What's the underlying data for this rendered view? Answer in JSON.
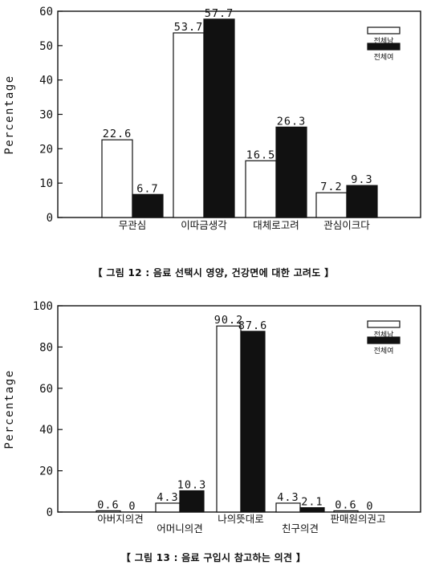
{
  "charts": [
    {
      "caption": "【 그림 12 : 음료 선택시 영양, 건강면에 대한 고려도 】",
      "ylabel": "Percentage",
      "legend": [
        "전체남",
        "전체여"
      ]
    },
    {
      "caption": "【 그림 13 : 음료 구입시 참고하는 의견 】",
      "ylabel": "Percentage",
      "legend": [
        "전체남",
        "전체여"
      ]
    }
  ],
  "chart_data": [
    {
      "type": "bar",
      "title": "",
      "xlabel": "",
      "ylabel": "Percentage",
      "ylim": [
        0,
        60
      ],
      "yticks": [
        0,
        10,
        20,
        30,
        40,
        50,
        60
      ],
      "categories": [
        "무관심",
        "이따금생각",
        "대체로고려",
        "관심이크다"
      ],
      "category_lines": [
        [
          "무관심"
        ],
        [
          "이따금생각"
        ],
        [
          "대체로고려"
        ],
        [
          "관심이크다"
        ]
      ],
      "series": [
        {
          "name": "전체남",
          "color": "#ffffff",
          "values": [
            22.6,
            53.7,
            16.5,
            7.2
          ],
          "labels": [
            "22.6",
            "53.7",
            "16.5",
            "7.2"
          ]
        },
        {
          "name": "전체여",
          "color": "#111111",
          "values": [
            6.7,
            57.7,
            26.3,
            9.3
          ],
          "labels": [
            "6.7",
            "57.7",
            "26.3",
            "9.3"
          ]
        }
      ],
      "legend_position": "top-right"
    },
    {
      "type": "bar",
      "title": "",
      "xlabel": "",
      "ylabel": "Percentage",
      "ylim": [
        0,
        100
      ],
      "yticks": [
        0,
        20,
        40,
        60,
        80,
        100
      ],
      "categories": [
        "아버지의견",
        "어머니의견",
        "나의뜻대로",
        "친구의견",
        "판매원의권고"
      ],
      "category_lines": [
        [
          "아버지의견"
        ],
        [
          "",
          "어머니의견"
        ],
        [
          "나의뜻대로"
        ],
        [
          "",
          "친구의견"
        ],
        [
          "판매원의권고"
        ]
      ],
      "series": [
        {
          "name": "전체남",
          "color": "#ffffff",
          "values": [
            0.6,
            4.3,
            90.2,
            4.3,
            0.6
          ],
          "labels": [
            "0.6",
            "4.3",
            "90.2",
            "4.3",
            "0.6"
          ]
        },
        {
          "name": "전체여",
          "color": "#111111",
          "values": [
            0,
            10.3,
            87.6,
            2.1,
            0
          ],
          "labels": [
            "0",
            "10.3",
            "87.6",
            "2.1",
            "0"
          ]
        }
      ],
      "legend_position": "top-right"
    }
  ]
}
